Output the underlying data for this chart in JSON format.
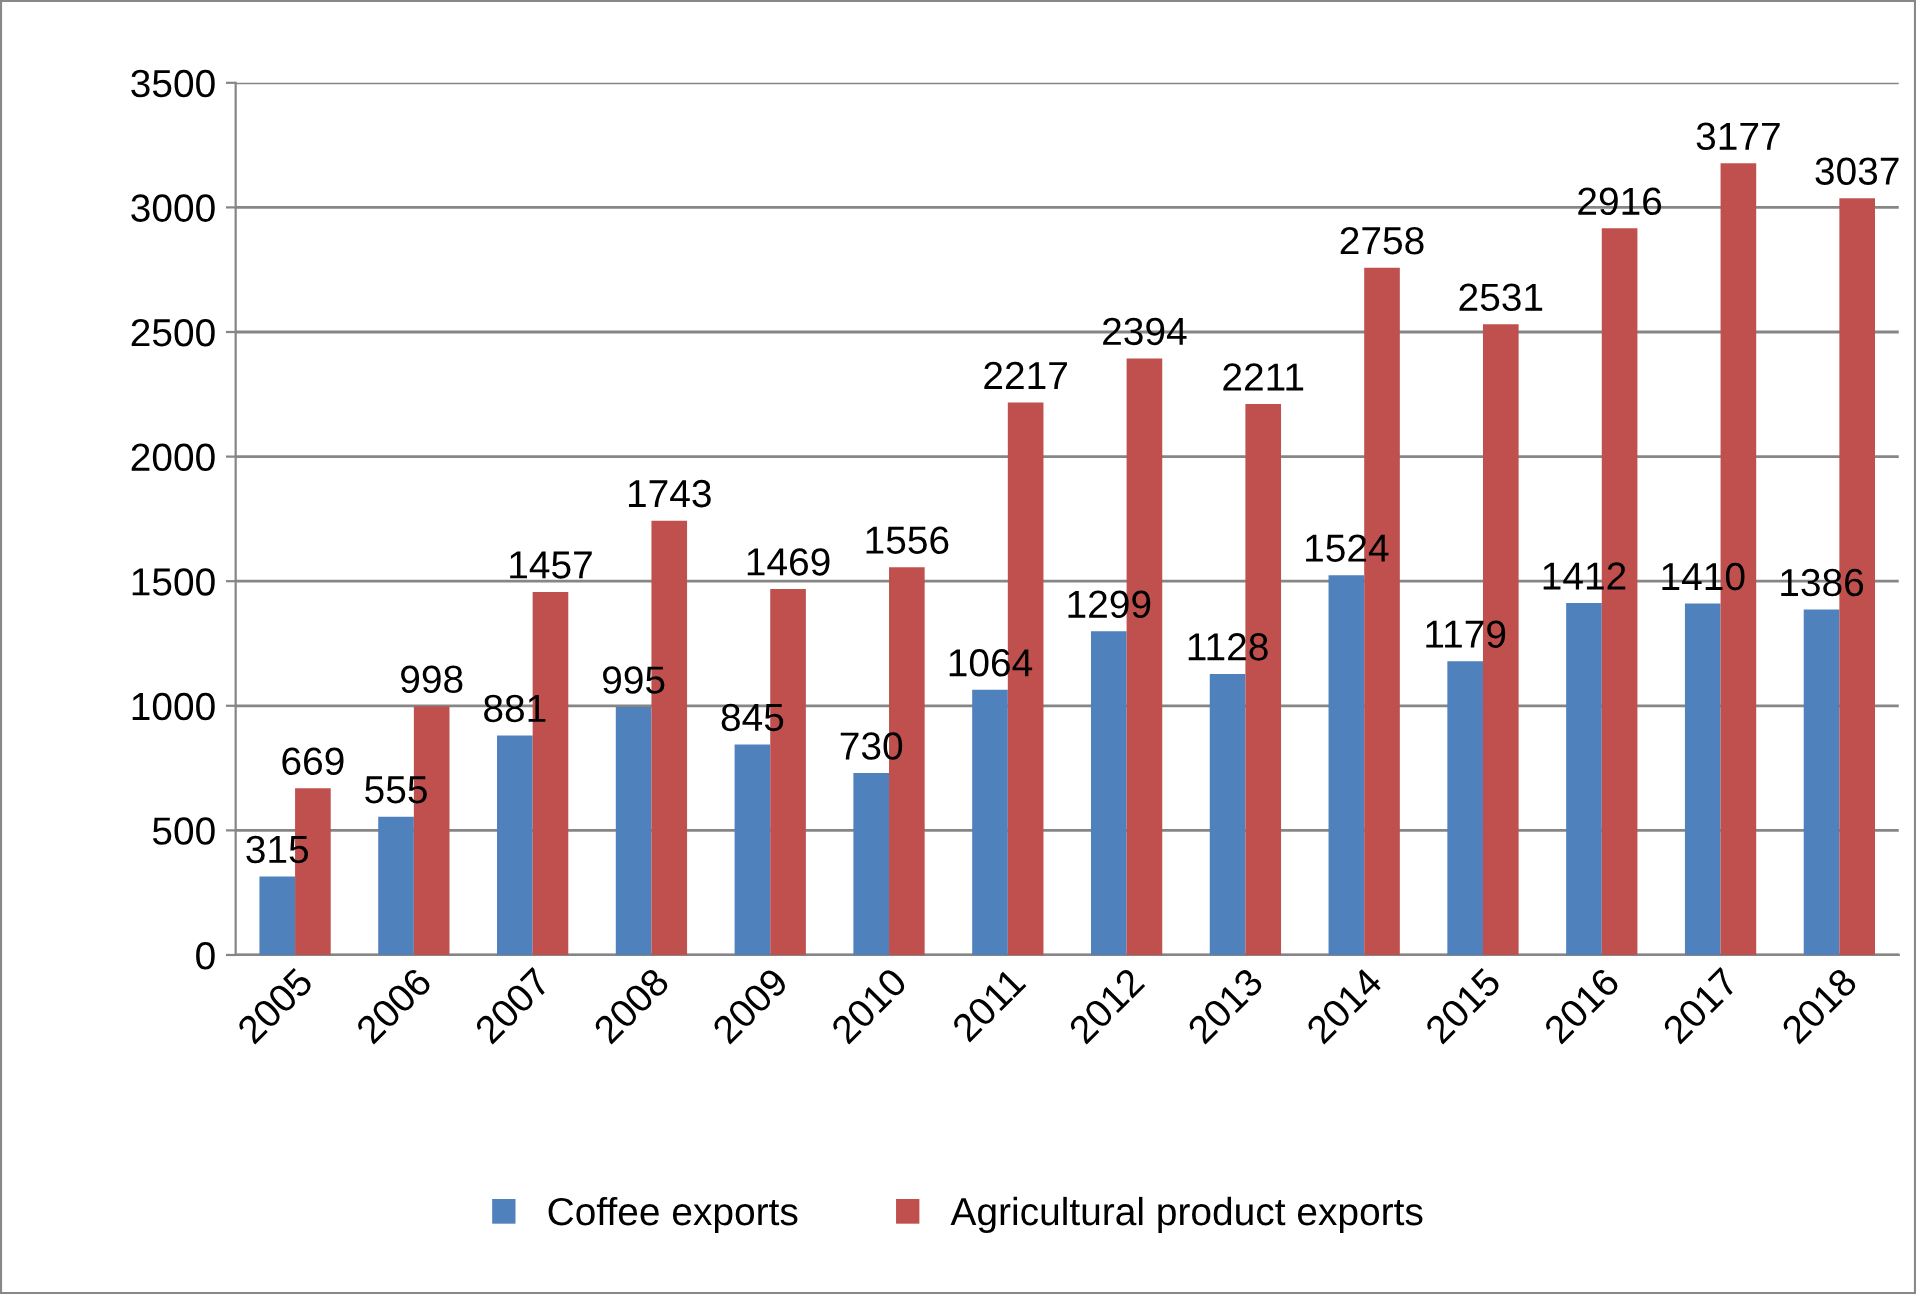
{
  "chart_data": {
    "type": "bar",
    "categories": [
      "2005",
      "2006",
      "2007",
      "2008",
      "2009",
      "2010",
      "2011",
      "2012",
      "2013",
      "2014",
      "2015",
      "2016",
      "2017",
      "2018"
    ],
    "series": [
      {
        "name": "Coffee exports",
        "color": "#4f81bd",
        "values": [
          315,
          555,
          881,
          995,
          845,
          730,
          1064,
          1299,
          1128,
          1524,
          1179,
          1412,
          1410,
          1386
        ]
      },
      {
        "name": "Agricultural product exports",
        "color": "#c0504d",
        "values": [
          669,
          998,
          1457,
          1743,
          1469,
          1556,
          2217,
          2394,
          2211,
          2758,
          2531,
          2916,
          3177,
          3037
        ]
      }
    ],
    "ylim": [
      0,
      3500
    ],
    "yticks": [
      0,
      500,
      1000,
      1500,
      2000,
      2500,
      3000,
      3500
    ],
    "grid": "y",
    "legend": "bottom",
    "data_labels": true
  }
}
